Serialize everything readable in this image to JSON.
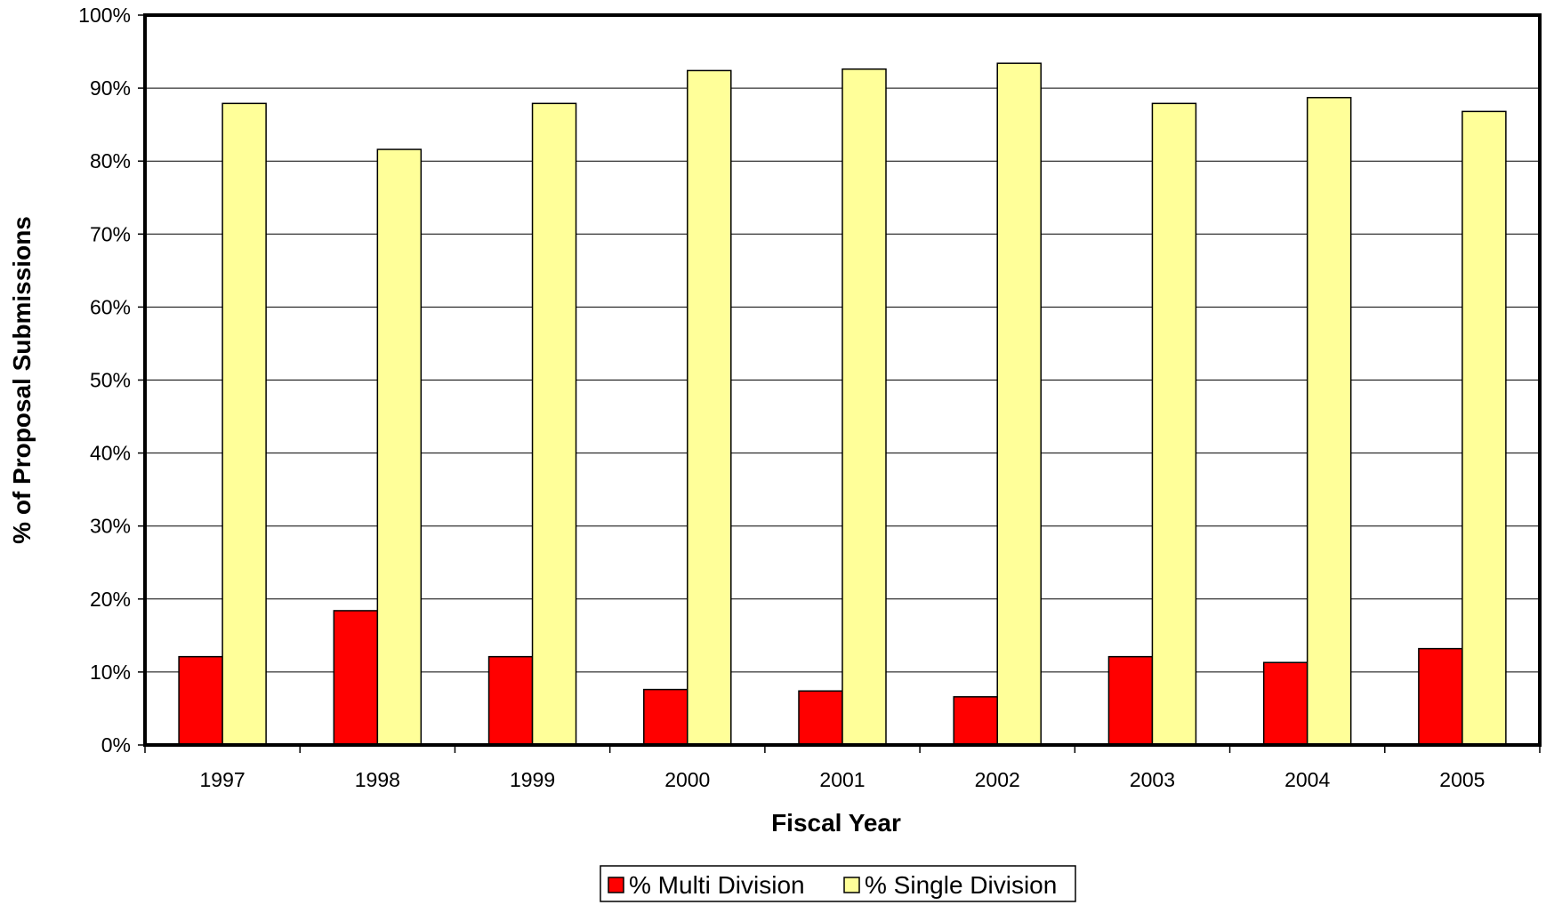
{
  "chart_data": {
    "type": "bar",
    "categories": [
      "1997",
      "1998",
      "1999",
      "2000",
      "2001",
      "2002",
      "2003",
      "2004",
      "2005"
    ],
    "series": [
      {
        "name": "% Multi Division",
        "color": "#ff0000",
        "values": [
          12.1,
          18.4,
          12.1,
          7.6,
          7.4,
          6.6,
          12.1,
          11.3,
          13.2
        ]
      },
      {
        "name": "% Single Division",
        "color": "#ffff99",
        "values": [
          87.9,
          81.6,
          87.9,
          92.4,
          92.6,
          93.4,
          87.9,
          88.7,
          86.8
        ]
      }
    ],
    "xlabel": "Fiscal Year",
    "ylabel": "% of Proposal Submissions",
    "ylim": [
      0,
      100
    ],
    "yticks": [
      "0%",
      "10%",
      "20%",
      "30%",
      "40%",
      "50%",
      "60%",
      "70%",
      "80%",
      "90%",
      "100%"
    ],
    "grid": true,
    "legend_position": "bottom"
  }
}
